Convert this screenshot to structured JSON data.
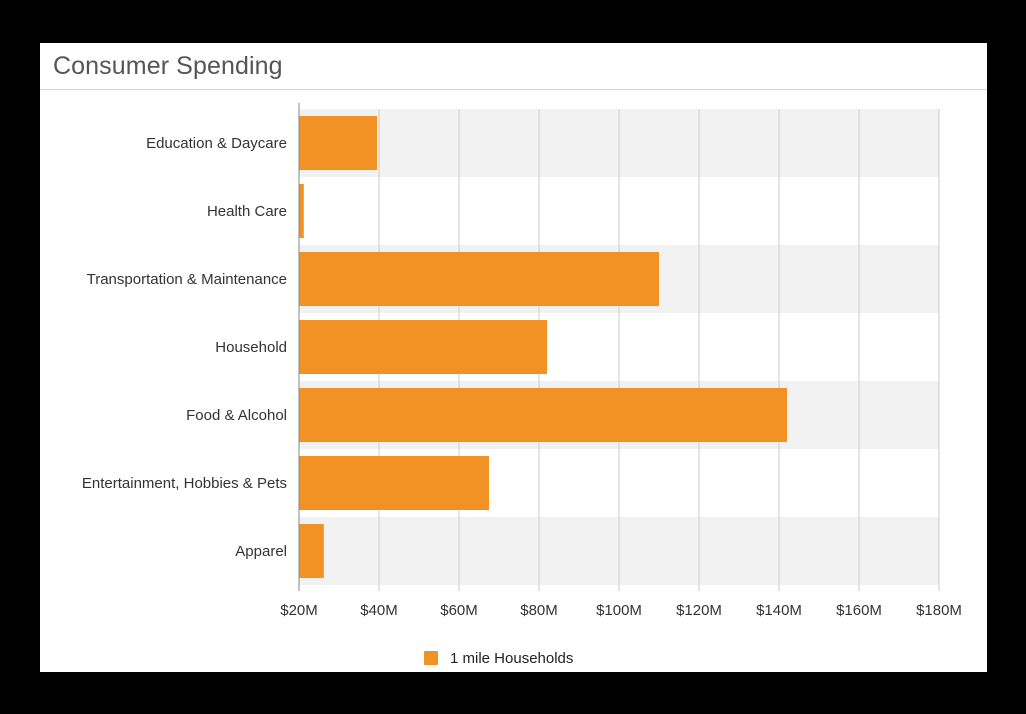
{
  "card": {
    "title": "Consumer Spending"
  },
  "colors": {
    "bar": "#f39224",
    "band": "#f2f2f2",
    "grid": "#c9c9c9",
    "axis": "#888888",
    "background": "#ffffff",
    "frame": "#000000"
  },
  "chart_data": {
    "type": "bar",
    "orientation": "horizontal",
    "title": "Consumer Spending",
    "xlabel": "",
    "ylabel": "",
    "xlim": [
      20,
      180
    ],
    "value_unit": "$M",
    "grid": true,
    "legend_position": "bottom-center",
    "categories": [
      "Education & Daycare",
      "Health Care",
      "Transportation & Maintenance",
      "Household",
      "Food & Alcohol",
      "Entertainment, Hobbies & Pets",
      "Apparel"
    ],
    "series": [
      {
        "name": "1 mile Households",
        "values": [
          39.5,
          21.2,
          110,
          82,
          142,
          67.5,
          26.2
        ]
      }
    ],
    "x_ticks": [
      {
        "value": 20,
        "label": "$20M"
      },
      {
        "value": 40,
        "label": "$40M"
      },
      {
        "value": 60,
        "label": "$60M"
      },
      {
        "value": 80,
        "label": "$80M"
      },
      {
        "value": 100,
        "label": "$100M"
      },
      {
        "value": 120,
        "label": "$120M"
      },
      {
        "value": 140,
        "label": "$140M"
      },
      {
        "value": 160,
        "label": "$160M"
      },
      {
        "value": 180,
        "label": "$180M"
      }
    ]
  }
}
